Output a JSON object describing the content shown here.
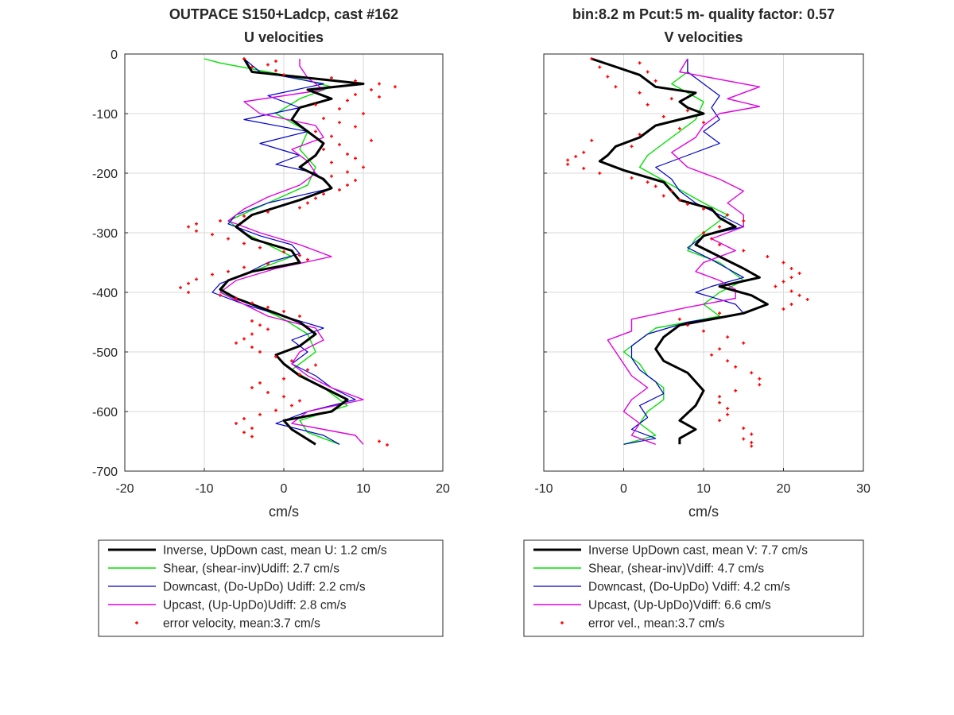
{
  "colors": {
    "inverse": "#000000",
    "shear": "#00e000",
    "downcast": "#0000cc",
    "upcast": "#e000e0",
    "error": "#ff0000",
    "grid": "#d9d9d9",
    "axis": "#262626"
  },
  "chart_data": [
    {
      "type": "line",
      "title": "OUTPACE S150+Ladcp, cast #162",
      "subtitle": "U velocities",
      "xlabel": "cm/s",
      "ylabel": "",
      "xlim": [
        -20,
        20
      ],
      "ylim": [
        -700,
        0
      ],
      "xticks": [
        "-20",
        "-10",
        "0",
        "10",
        "20"
      ],
      "yticks": [
        "0",
        "-100",
        "-200",
        "-300",
        "-400",
        "-500",
        "-600",
        "-700"
      ],
      "grid": true,
      "legend": "below",
      "legend_labels": [
        "Inverse, UpDown cast, mean U:  1.2 cm/s",
        "Shear, (shear-inv)Udiff:  2.7 cm/s",
        "Downcast, (Do-UpDo) Udiff:  2.2 cm/s",
        "Upcast, (Up-UpDo)Udiff:  2.8 cm/s",
        "error velocity, mean:3.7 cm/s"
      ],
      "series": [
        {
          "key": "inverse",
          "depth": [
            -8,
            -30,
            -50,
            -60,
            -75,
            -90,
            -110,
            -130,
            -150,
            -170,
            -190,
            -210,
            -225,
            -245,
            -270,
            -290,
            -310,
            -330,
            -350,
            -365,
            -380,
            -395,
            -410,
            -430,
            -450,
            -470,
            -490,
            -505,
            -520,
            -540,
            -560,
            -580,
            -600,
            -615,
            -630,
            -655
          ],
          "values": [
            -5,
            -4,
            10,
            3,
            6,
            2,
            1,
            3,
            5,
            4,
            2,
            5,
            6,
            2,
            -4,
            -6,
            -4,
            1,
            2,
            -4,
            -7,
            -8,
            -6,
            -2,
            2,
            4,
            2,
            -1,
            0,
            2,
            5,
            8,
            6,
            0,
            1,
            4
          ]
        },
        {
          "key": "shear",
          "depth": [
            -8,
            -15,
            -35,
            -55,
            -75,
            -100,
            -130,
            -160,
            -190,
            -220,
            -250,
            -280,
            -300,
            -320,
            -340,
            -360,
            -380,
            -400,
            -420,
            -445,
            -470,
            -500,
            -530,
            -560,
            -590,
            -615,
            -635,
            -655
          ],
          "values": [
            -10,
            -8,
            0,
            6,
            2,
            -1,
            3,
            2,
            4,
            3,
            -2,
            -7,
            -5,
            -2,
            1,
            -3,
            -7,
            -8,
            -4,
            0,
            3,
            4,
            1,
            5,
            8,
            2,
            3,
            7
          ]
        },
        {
          "key": "downcast",
          "depth": [
            -8,
            -30,
            -50,
            -70,
            -90,
            -110,
            -130,
            -150,
            -170,
            -185,
            -200,
            -225,
            -250,
            -270,
            -285,
            -305,
            -320,
            -335,
            -350,
            -370,
            -385,
            -400,
            -420,
            -440,
            -460,
            -480,
            -500,
            -520,
            -540,
            -560,
            -580,
            -600,
            -620,
            -640,
            -655
          ],
          "values": [
            -5,
            -3,
            5,
            -2,
            2,
            -5,
            3,
            -3,
            2,
            -1,
            4,
            6,
            -2,
            -6,
            -7,
            -3,
            1,
            2,
            -2,
            -5,
            -8,
            -9,
            -5,
            0,
            5,
            1,
            3,
            1,
            4,
            6,
            9,
            3,
            -1,
            5,
            7
          ]
        },
        {
          "key": "upcast",
          "depth": [
            -8,
            -20,
            -40,
            -60,
            -80,
            -100,
            -120,
            -140,
            -160,
            -180,
            -200,
            -220,
            -240,
            -260,
            -280,
            -300,
            -320,
            -340,
            -360,
            -380,
            -400,
            -420,
            -440,
            -460,
            -480,
            -500,
            -520,
            -540,
            -560,
            -580,
            -600,
            -620,
            -640,
            -655
          ],
          "values": [
            2,
            2,
            3,
            5,
            -5,
            -3,
            4,
            5,
            1,
            3,
            4,
            2,
            -2,
            -5,
            -7,
            -3,
            2,
            6,
            -1,
            -6,
            -8,
            -5,
            -2,
            4,
            5,
            2,
            1,
            3,
            6,
            10,
            3,
            1,
            9,
            10
          ]
        }
      ],
      "error_points": {
        "key": "error",
        "depth": [
          -8,
          -12,
          -18,
          -22,
          -28,
          -35,
          -40,
          -45,
          -50,
          -55,
          -60,
          -68,
          -72,
          -78,
          -85,
          -92,
          -100,
          -108,
          -115,
          -122,
          -130,
          -138,
          -145,
          -152,
          -160,
          -168,
          -175,
          -182,
          -190,
          -198,
          -205,
          -212,
          -220,
          -228,
          -235,
          -242,
          -250,
          -258,
          -265,
          -272,
          -280,
          -285,
          -290,
          -297,
          -303,
          -310,
          -318,
          -325,
          -332,
          -338,
          -345,
          -352,
          -358,
          -365,
          -370,
          -378,
          -385,
          -392,
          -400,
          -405,
          -410,
          -418,
          -425,
          -432,
          -440,
          -448,
          -455,
          -462,
          -470,
          -478,
          -485,
          -492,
          -500,
          -508,
          -515,
          -522,
          -530,
          -538,
          -545,
          -552,
          -560,
          -568,
          -575,
          -582,
          -590,
          -598,
          -605,
          -612,
          -620,
          -628,
          -635,
          -642,
          -650,
          -656
        ],
        "values": [
          -5,
          -1,
          -2,
          -4,
          -1,
          0,
          6,
          9,
          12,
          14,
          11,
          9,
          12,
          8,
          4,
          7,
          10,
          5,
          7,
          9,
          4,
          6,
          11,
          7,
          5,
          8,
          9,
          6,
          10,
          8,
          6,
          9,
          8,
          7,
          5,
          4,
          3,
          2,
          -2,
          -5,
          -8,
          -11,
          -12,
          -11,
          -9,
          -7,
          -5,
          -3,
          0,
          2,
          3,
          -2,
          -5,
          -7,
          -9,
          -11,
          -12,
          -13,
          -12,
          -8,
          -6,
          -4,
          -2,
          0,
          2,
          -4,
          -3,
          -2,
          -4,
          -5,
          -6,
          -4,
          -3,
          -1,
          1,
          4,
          3,
          2,
          0,
          -3,
          -4,
          -2,
          0,
          2,
          1,
          -1,
          -3,
          -5,
          -6,
          -4,
          -5,
          -4,
          12,
          13
        ]
      }
    },
    {
      "type": "line",
      "title": "bin:8.2 m  Pcut:5 m- quality factor:  0.57",
      "subtitle": "V velocities",
      "xlabel": "cm/s",
      "ylabel": "",
      "xlim": [
        -10,
        30
      ],
      "ylim": [
        -700,
        0
      ],
      "xticks": [
        "-10",
        "0",
        "10",
        "20",
        "30"
      ],
      "yticks": [],
      "grid": true,
      "legend": "below",
      "legend_labels": [
        "Inverse UpDown cast, mean V:  7.7 cm/s",
        "Shear, (shear-inv)Vdiff:  4.7 cm/s",
        "Downcast, (Do-UpDo) Vdiff:  4.2 cm/s",
        "Upcast, (Up-UpDo)Vdiff:  6.6 cm/s",
        "error vel., mean:3.7 cm/s"
      ],
      "series": [
        {
          "key": "inverse",
          "depth": [
            -8,
            -35,
            -55,
            -65,
            -80,
            -90,
            -100,
            -120,
            -140,
            -155,
            -170,
            -180,
            -195,
            -215,
            -230,
            -245,
            -260,
            -275,
            -290,
            -305,
            -320,
            -340,
            -360,
            -375,
            -390,
            -405,
            -420,
            -435,
            -455,
            -475,
            -495,
            -515,
            -535,
            -550,
            -565,
            -590,
            -615,
            -630,
            -645,
            -655
          ],
          "values": [
            -4,
            2,
            4,
            9,
            7,
            8,
            10,
            4,
            2,
            -1,
            -2,
            -3,
            0,
            5,
            6,
            7,
            11,
            12,
            14,
            10,
            9,
            12,
            15,
            17,
            12,
            16,
            18,
            15,
            7,
            5,
            4,
            5,
            8,
            9,
            10,
            9,
            7,
            9,
            7,
            7
          ]
        },
        {
          "key": "shear",
          "depth": [
            -8,
            -30,
            -50,
            -80,
            -110,
            -140,
            -170,
            -190,
            -220,
            -250,
            -270,
            -290,
            -310,
            -330,
            -350,
            -380,
            -400,
            -420,
            -440,
            -460,
            -480,
            -500,
            -520,
            -540,
            -560,
            -580,
            -600,
            -620,
            -640,
            -655
          ],
          "values": [
            8,
            8,
            6,
            10,
            9,
            6,
            3,
            2,
            6,
            10,
            13,
            11,
            9,
            8,
            12,
            15,
            12,
            10,
            12,
            4,
            2,
            0,
            2,
            3,
            5,
            5,
            3,
            2,
            4,
            0
          ]
        },
        {
          "key": "downcast",
          "depth": [
            -8,
            -30,
            -50,
            -70,
            -90,
            -110,
            -130,
            -150,
            -170,
            -190,
            -210,
            -230,
            -250,
            -270,
            -290,
            -305,
            -325,
            -345,
            -360,
            -375,
            -390,
            -400,
            -420,
            -435,
            -450,
            -470,
            -490,
            -510,
            -530,
            -550,
            -570,
            -590,
            -610,
            -630,
            -645,
            -655
          ],
          "values": [
            8,
            8,
            10,
            12,
            11,
            12,
            10,
            12,
            8,
            4,
            6,
            7,
            9,
            12,
            15,
            10,
            8,
            11,
            13,
            15,
            11,
            9,
            14,
            15,
            8,
            3,
            1,
            1,
            2,
            4,
            5,
            2,
            3,
            1,
            4,
            0
          ]
        },
        {
          "key": "upcast",
          "depth": [
            -8,
            -30,
            -55,
            -75,
            -88,
            -100,
            -120,
            -140,
            -165,
            -190,
            -210,
            -230,
            -250,
            -270,
            -290,
            -310,
            -330,
            -350,
            -365,
            -380,
            -395,
            -410,
            -425,
            -445,
            -465,
            -480,
            -500,
            -520,
            -540,
            -560,
            -580,
            -600,
            -620,
            -640,
            -655
          ],
          "values": [
            8,
            7,
            17,
            13,
            17,
            12,
            10,
            9,
            6,
            8,
            12,
            15,
            13,
            15,
            15,
            11,
            14,
            10,
            9,
            12,
            14,
            14,
            8,
            1,
            1,
            -2,
            -1,
            0,
            1,
            3,
            1,
            0,
            2,
            1,
            4
          ]
        }
      ],
      "error_points": {
        "key": "error",
        "depth": [
          -8,
          -15,
          -22,
          -30,
          -38,
          -45,
          -55,
          -65,
          -75,
          -85,
          -95,
          -105,
          -115,
          -125,
          -135,
          -145,
          -155,
          -165,
          -172,
          -178,
          -185,
          -192,
          -200,
          -208,
          -215,
          -222,
          -230,
          -238,
          -245,
          -252,
          -260,
          -270,
          -280,
          -290,
          -300,
          -310,
          -320,
          -330,
          -340,
          -350,
          -360,
          -368,
          -375,
          -382,
          -390,
          -398,
          -405,
          -412,
          -420,
          -428,
          -435,
          -445,
          -455,
          -465,
          -475,
          -485,
          -495,
          -505,
          -515,
          -525,
          -535,
          -545,
          -555,
          -565,
          -575,
          -585,
          -595,
          -605,
          -615,
          -628,
          -638,
          -646,
          -652,
          -658
        ],
        "values": [
          -4,
          2,
          -3,
          3,
          -2,
          4,
          -1,
          2,
          6,
          3,
          8,
          5,
          10,
          7,
          2,
          -4,
          1,
          -5,
          -6,
          -7,
          -7,
          -5,
          -3,
          1,
          3,
          4,
          6,
          5,
          7,
          8,
          10,
          13,
          15,
          12,
          10,
          11,
          12,
          15,
          18,
          20,
          21,
          22,
          21,
          20,
          19,
          21,
          22,
          23,
          21,
          20,
          12,
          7,
          8,
          10,
          13,
          15,
          12,
          11,
          13,
          14,
          16,
          17,
          17,
          14,
          12,
          12,
          13,
          13,
          12,
          15,
          16,
          15,
          16,
          16
        ]
      }
    }
  ]
}
